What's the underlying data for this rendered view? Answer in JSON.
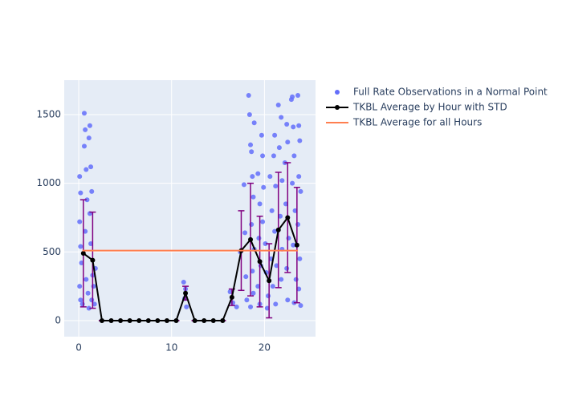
{
  "chart_data": {
    "type": "scatter",
    "xlim": [
      -1.56,
      25.5
    ],
    "ylim": [
      -117,
      1751
    ],
    "xticks": [
      0,
      10,
      20
    ],
    "yticks": [
      0,
      500,
      1000,
      1500
    ],
    "grid": true,
    "background": "#e5ecf6",
    "legend": "right",
    "series": [
      {
        "name": "Full Rate Observations in a Normal Point",
        "mode": "markers",
        "color": "#636efa",
        "x": [
          0.1,
          0.2,
          0.1,
          0.2,
          0.3,
          0.1,
          0.2,
          0.4,
          0.6,
          0.7,
          0.6,
          0.8,
          0.9,
          0.7,
          0.8,
          1.0,
          1.1,
          1.2,
          1.3,
          1.4,
          1.2,
          1.3,
          1.5,
          1.4,
          1.8,
          1.7,
          1.6,
          1.1,
          11.3,
          11.5,
          11.4,
          11.6,
          16.3,
          16.6,
          17.0,
          17.4,
          17.8,
          17.9,
          18.0,
          18.1,
          18.3,
          18.4,
          18.5,
          18.6,
          18.7,
          18.8,
          18.6,
          18.9,
          18.7,
          18.8,
          18.5,
          18.9,
          19.3,
          19.5,
          19.4,
          19.6,
          19.3,
          19.5,
          19.7,
          19.8,
          19.9,
          19.8,
          20.1,
          20.2,
          20.4,
          20.3,
          20.6,
          20.8,
          20.7,
          20.9,
          21.0,
          21.1,
          21.2,
          21.1,
          21.3,
          21.2,
          21.5,
          21.6,
          21.8,
          21.9,
          21.7,
          21.9,
          21.8,
          22.2,
          22.4,
          22.5,
          22.3,
          22.6,
          22.4,
          22.5,
          22.9,
          23.0,
          23.1,
          23.2,
          23.0,
          23.3,
          23.1,
          23.4,
          23.2,
          23.6,
          23.7,
          23.8,
          23.7,
          23.9,
          23.6,
          23.8,
          23.7,
          23.9
        ],
        "values": [
          1050,
          930,
          720,
          540,
          420,
          250,
          150,
          120,
          1510,
          1390,
          1270,
          1100,
          880,
          650,
          300,
          200,
          1330,
          1420,
          1120,
          940,
          780,
          560,
          330,
          150,
          380,
          120,
          250,
          90,
          280,
          230,
          160,
          100,
          210,
          130,
          100,
          500,
          990,
          640,
          320,
          150,
          1640,
          1500,
          1280,
          1230,
          1050,
          900,
          700,
          520,
          360,
          200,
          100,
          1440,
          1070,
          850,
          600,
          400,
          250,
          120,
          1350,
          1200,
          970,
          720,
          560,
          350,
          180,
          90,
          1050,
          800,
          450,
          250,
          1200,
          1350,
          980,
          650,
          400,
          120,
          1570,
          1260,
          1480,
          1020,
          760,
          520,
          300,
          1150,
          1430,
          1300,
          850,
          600,
          380,
          150,
          1610,
          1630,
          1410,
          1200,
          1000,
          800,
          550,
          300,
          130,
          1640,
          1420,
          1310,
          1050,
          940,
          700,
          450,
          230,
          110
        ]
      },
      {
        "name": "TKBL Average by Hour with STD",
        "mode": "lines+markers",
        "color": "#000000",
        "error_color": "#800080",
        "x": [
          0.5,
          1.5,
          2.5,
          3.5,
          4.5,
          5.5,
          6.5,
          7.5,
          8.5,
          9.5,
          10.5,
          11.5,
          12.5,
          13.5,
          14.5,
          15.5,
          16.5,
          17.5,
          18.5,
          19.5,
          20.5,
          21.5,
          22.5,
          23.5
        ],
        "values": [
          490,
          440,
          0,
          0,
          0,
          0,
          0,
          0,
          0,
          0,
          0,
          200,
          0,
          0,
          0,
          0,
          170,
          510,
          590,
          430,
          290,
          660,
          750,
          550
        ],
        "error": [
          390,
          350,
          0,
          0,
          0,
          0,
          0,
          0,
          0,
          0,
          0,
          50,
          0,
          0,
          0,
          0,
          60,
          290,
          410,
          330,
          270,
          420,
          400,
          420
        ]
      },
      {
        "name": "TKBL Average for all Hours",
        "mode": "lines",
        "color": "#ff7f50",
        "x": [
          0.4,
          23.6
        ],
        "values": [
          510,
          510
        ]
      }
    ]
  }
}
